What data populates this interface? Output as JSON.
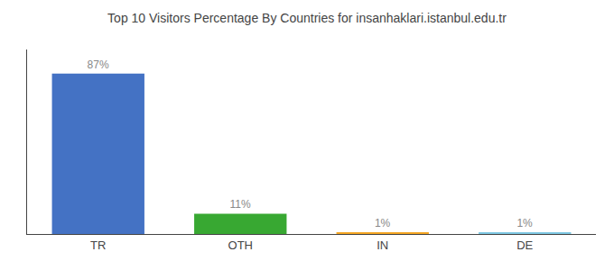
{
  "chart_data": {
    "type": "bar",
    "title": "Top 10 Visitors Percentage By Countries for insanhaklari.istanbul.edu.tr",
    "categories": [
      "TR",
      "OTH",
      "IN",
      "DE"
    ],
    "values": [
      87,
      11,
      1,
      1
    ],
    "value_labels": [
      "87%",
      "11%",
      "1%",
      "1%"
    ],
    "data_labels": true,
    "colors": [
      "#4472c4",
      "#38a832",
      "#f5a623",
      "#7ec8e3"
    ],
    "ylim": [
      0,
      100
    ],
    "grid": false,
    "tick_labels": "x"
  }
}
